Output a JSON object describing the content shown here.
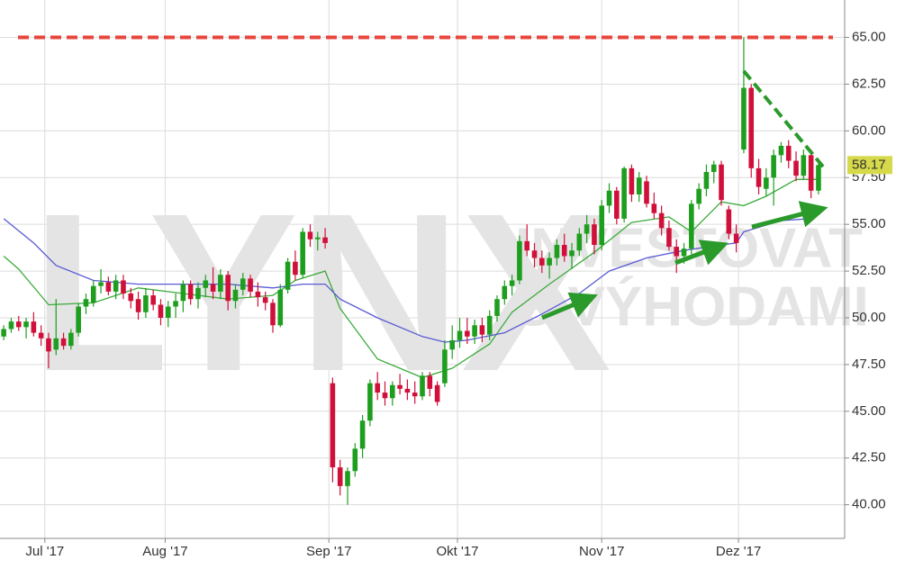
{
  "chart_data": {
    "type": "candlestick",
    "watermark": {
      "brand": "LYNX",
      "line1": "INVESTOVAT",
      "line2": "S VÝHODAMI"
    },
    "xlim": [
      -0.5,
      112.5
    ],
    "ylim": [
      38.2,
      67.0
    ],
    "xticks": [
      {
        "value": 5.5,
        "label": "Jul '17"
      },
      {
        "value": 21.6,
        "label": "Aug '17"
      },
      {
        "value": 43.5,
        "label": "Sep '17"
      },
      {
        "value": 60.7,
        "label": "Okt '17"
      },
      {
        "value": 80,
        "label": "Nov '17"
      },
      {
        "value": 98.3,
        "label": "Dez '17"
      }
    ],
    "yticks": [
      {
        "value": 40,
        "label": "40.00"
      },
      {
        "value": 42.5,
        "label": "42.50"
      },
      {
        "value": 45,
        "label": "45.00"
      },
      {
        "value": 47.5,
        "label": "47.50"
      },
      {
        "value": 50,
        "label": "50.00"
      },
      {
        "value": 52.5,
        "label": "52.50"
      },
      {
        "value": 55,
        "label": "55.00"
      },
      {
        "value": 57.5,
        "label": "57.50"
      },
      {
        "value": 60,
        "label": "60.00"
      },
      {
        "value": 62.5,
        "label": "62.50"
      },
      {
        "value": 65,
        "label": "65.00"
      }
    ],
    "grid": true,
    "up_color": "#1e9e1e",
    "down_color": "#d0103a",
    "last_value": 58.17,
    "last_value_color": "#d6d94a",
    "candles": [
      [
        49.0,
        49.6,
        48.8,
        49.4
      ],
      [
        49.4,
        50.0,
        49.2,
        49.8
      ],
      [
        49.8,
        50.1,
        49.3,
        49.5
      ],
      [
        49.5,
        50.0,
        48.9,
        49.8
      ],
      [
        49.8,
        50.3,
        49.0,
        49.2
      ],
      [
        49.2,
        49.6,
        48.5,
        48.9
      ],
      [
        48.9,
        49.2,
        47.3,
        48.2
      ],
      [
        48.3,
        51.0,
        48.0,
        48.9
      ],
      [
        48.9,
        49.2,
        48.3,
        48.5
      ],
      [
        48.5,
        49.4,
        48.3,
        49.2
      ],
      [
        49.2,
        50.8,
        49.0,
        50.6
      ],
      [
        50.6,
        51.3,
        50.2,
        51.0
      ],
      [
        50.8,
        52.0,
        50.6,
        51.7
      ],
      [
        51.7,
        52.6,
        51.3,
        51.9
      ],
      [
        51.9,
        52.2,
        51.2,
        51.4
      ],
      [
        51.4,
        52.3,
        51.0,
        52.0
      ],
      [
        52.0,
        52.3,
        51.0,
        51.3
      ],
      [
        51.3,
        51.6,
        50.5,
        50.9
      ],
      [
        51.0,
        51.4,
        49.9,
        50.3
      ],
      [
        50.3,
        51.6,
        50.0,
        51.2
      ],
      [
        51.2,
        51.5,
        50.4,
        50.7
      ],
      [
        50.7,
        51.0,
        49.6,
        50.0
      ],
      [
        50.0,
        50.9,
        49.5,
        50.6
      ],
      [
        50.6,
        51.3,
        50.0,
        50.9
      ],
      [
        50.9,
        52.0,
        50.3,
        51.8
      ],
      [
        51.8,
        52.0,
        50.7,
        51.0
      ],
      [
        51.0,
        51.9,
        50.5,
        51.6
      ],
      [
        51.6,
        52.3,
        51.1,
        52.0
      ],
      [
        51.8,
        52.7,
        51.0,
        51.4
      ],
      [
        51.4,
        52.6,
        51.0,
        52.3
      ],
      [
        52.3,
        52.5,
        50.4,
        50.9
      ],
      [
        50.9,
        51.8,
        50.5,
        51.5
      ],
      [
        51.5,
        52.4,
        51.2,
        52.1
      ],
      [
        52.1,
        52.3,
        51.1,
        51.4
      ],
      [
        51.4,
        51.9,
        50.6,
        51.1
      ],
      [
        51.1,
        51.4,
        50.4,
        50.8
      ],
      [
        50.8,
        51.0,
        49.2,
        49.6
      ],
      [
        49.6,
        51.8,
        49.5,
        51.5
      ],
      [
        51.5,
        53.2,
        51.3,
        53.0
      ],
      [
        53.0,
        53.6,
        52.0,
        52.3
      ],
      [
        52.3,
        54.8,
        52.1,
        54.6
      ],
      [
        54.6,
        55.0,
        53.8,
        54.2
      ],
      [
        54.2,
        54.6,
        53.6,
        54.3
      ],
      [
        54.3,
        54.8,
        53.7,
        54.0
      ],
      [
        46.5,
        46.8,
        41.2,
        42.0
      ],
      [
        42.0,
        42.4,
        40.5,
        41.0
      ],
      [
        41.0,
        42.0,
        40.0,
        41.8
      ],
      [
        41.8,
        43.3,
        41.5,
        43.0
      ],
      [
        43.0,
        44.8,
        42.5,
        44.5
      ],
      [
        44.5,
        46.7,
        44.2,
        46.5
      ],
      [
        46.5,
        47.1,
        45.6,
        46.0
      ],
      [
        46.0,
        46.6,
        45.3,
        45.7
      ],
      [
        45.7,
        46.6,
        45.3,
        46.4
      ],
      [
        46.4,
        47.0,
        45.9,
        46.2
      ],
      [
        46.2,
        46.7,
        45.6,
        46.0
      ],
      [
        46.0,
        46.6,
        45.4,
        45.8
      ],
      [
        45.8,
        47.1,
        45.6,
        46.9
      ],
      [
        46.9,
        47.1,
        45.8,
        46.2
      ],
      [
        46.4,
        46.6,
        45.3,
        45.5
      ],
      [
        46.5,
        48.8,
        46.3,
        48.3
      ],
      [
        48.3,
        49.6,
        47.8,
        48.8
      ],
      [
        48.8,
        50.0,
        48.4,
        49.3
      ],
      [
        49.3,
        50.0,
        48.6,
        49.0
      ],
      [
        49.0,
        49.9,
        48.6,
        49.6
      ],
      [
        49.6,
        50.0,
        48.7,
        49.1
      ],
      [
        49.1,
        50.4,
        48.8,
        50.1
      ],
      [
        50.1,
        51.2,
        49.8,
        51.0
      ],
      [
        51.0,
        52.0,
        50.7,
        51.7
      ],
      [
        51.7,
        52.3,
        51.2,
        52.0
      ],
      [
        52.0,
        54.4,
        51.8,
        54.1
      ],
      [
        54.1,
        55.0,
        53.3,
        53.6
      ],
      [
        53.6,
        54.0,
        52.7,
        53.2
      ],
      [
        53.2,
        53.6,
        52.4,
        52.8
      ],
      [
        52.8,
        53.5,
        52.1,
        53.2
      ],
      [
        53.2,
        54.2,
        52.8,
        53.9
      ],
      [
        53.9,
        54.5,
        53.0,
        53.3
      ],
      [
        53.3,
        54.0,
        52.6,
        53.6
      ],
      [
        53.6,
        54.8,
        53.3,
        54.5
      ],
      [
        54.5,
        55.5,
        54.0,
        55.0
      ],
      [
        55.0,
        55.3,
        53.4,
        53.9
      ],
      [
        53.9,
        56.3,
        53.6,
        56.0
      ],
      [
        56.0,
        57.2,
        55.6,
        56.8
      ],
      [
        56.8,
        57.0,
        55.0,
        55.3
      ],
      [
        55.3,
        58.1,
        55.1,
        58.0
      ],
      [
        58.0,
        58.2,
        56.2,
        56.6
      ],
      [
        56.6,
        57.8,
        56.2,
        57.5
      ],
      [
        57.3,
        57.6,
        55.9,
        56.1
      ],
      [
        56.1,
        56.7,
        55.3,
        55.6
      ],
      [
        55.6,
        56.0,
        54.4,
        54.8
      ],
      [
        54.8,
        55.2,
        53.6,
        53.8
      ],
      [
        53.8,
        54.2,
        52.4,
        53.3
      ],
      [
        53.3,
        54.0,
        52.9,
        53.7
      ],
      [
        53.7,
        56.3,
        53.4,
        56.1
      ],
      [
        56.1,
        57.2,
        55.8,
        56.9
      ],
      [
        56.9,
        58.2,
        56.5,
        57.8
      ],
      [
        57.8,
        58.4,
        57.2,
        58.2
      ],
      [
        58.2,
        58.4,
        56.0,
        56.3
      ],
      [
        55.8,
        56.0,
        54.2,
        54.5
      ],
      [
        54.5,
        55.0,
        53.5,
        54.0
      ],
      [
        59.0,
        65.0,
        58.8,
        62.3
      ],
      [
        62.3,
        62.5,
        57.5,
        58.0
      ],
      [
        58.0,
        58.5,
        56.6,
        57.0
      ],
      [
        56.9,
        58.0,
        56.5,
        57.5
      ],
      [
        57.5,
        59.0,
        56.0,
        58.7
      ],
      [
        58.7,
        59.4,
        58.3,
        59.2
      ],
      [
        59.2,
        59.5,
        58.0,
        58.4
      ],
      [
        58.4,
        58.9,
        57.3,
        57.6
      ],
      [
        57.6,
        59.0,
        57.4,
        58.7
      ],
      [
        58.7,
        59.0,
        56.4,
        56.8
      ],
      [
        56.8,
        58.4,
        56.6,
        58.17
      ]
    ],
    "moving_averages": [
      {
        "color": "#3bab3b",
        "x": [
          0,
          2,
          6,
          12,
          18,
          24,
          30,
          36,
          39,
          43,
          45,
          50,
          56,
          60,
          65,
          68,
          73,
          79,
          84,
          89,
          92,
          96,
          99,
          102,
          106,
          109
        ],
        "values": [
          53.3,
          52.6,
          50.7,
          50.8,
          51.6,
          51.3,
          51.0,
          51.2,
          52.0,
          52.5,
          50.5,
          47.8,
          46.8,
          47.3,
          48.6,
          50.3,
          51.8,
          53.5,
          55.1,
          55.4,
          54.6,
          56.2,
          56.0,
          56.5,
          57.4,
          57.4
        ]
      },
      {
        "color": "#5a5ad6",
        "x": [
          0,
          4,
          7,
          12,
          18,
          24,
          30,
          36,
          40,
          43,
          45,
          50,
          56,
          59,
          62,
          67,
          72,
          77,
          81,
          86,
          91,
          96,
          98,
          99,
          104,
          108
        ],
        "values": [
          55.3,
          54.0,
          52.8,
          52.0,
          51.8,
          51.8,
          51.8,
          51.6,
          51.8,
          51.8,
          51.0,
          50.0,
          49.0,
          48.7,
          48.8,
          49.2,
          50.2,
          51.3,
          52.5,
          53.2,
          53.6,
          53.9,
          54.0,
          54.6,
          55.2,
          55.3
        ]
      }
    ],
    "resistance": {
      "value": 65,
      "color": "#e8463c"
    },
    "trend_line": {
      "x": [
        99,
        110
      ],
      "values": [
        63.2,
        57.9
      ],
      "color": "#2a9a2a"
    }
  }
}
